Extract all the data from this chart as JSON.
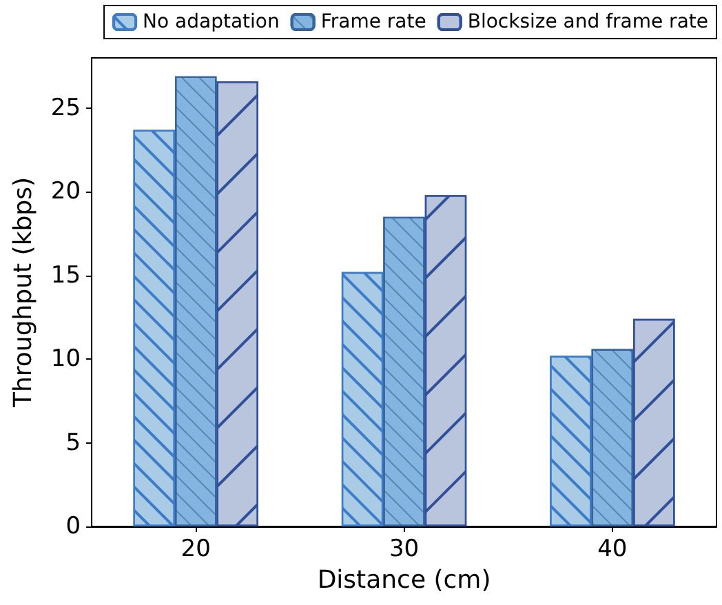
{
  "chart_data": {
    "type": "bar",
    "xlabel": "Distance (cm)",
    "ylabel": "Throughput (kbps)",
    "categories": [
      "20",
      "30",
      "40"
    ],
    "series": [
      {
        "name": "No adaptation",
        "color": "#a9cbe5",
        "values": [
          23.7,
          15.2,
          10.2
        ]
      },
      {
        "name": "Frame rate",
        "color": "#84b4e0",
        "values": [
          26.9,
          18.5,
          10.6
        ]
      },
      {
        "name": "Blocksize and frame rate",
        "color": "#b8c5dd",
        "values": [
          26.6,
          19.8,
          12.4
        ]
      }
    ],
    "ylim": [
      0,
      28
    ],
    "yticks": [
      0,
      5,
      10,
      15,
      20,
      25
    ],
    "grid": false,
    "legend": "top"
  }
}
